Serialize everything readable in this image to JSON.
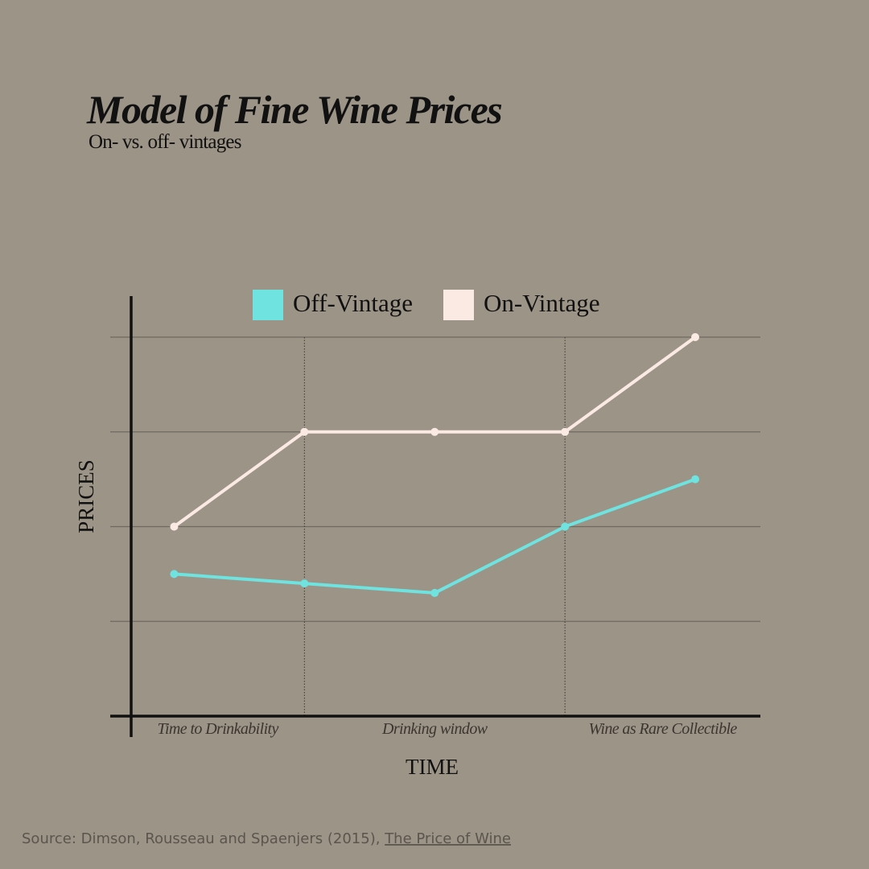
{
  "chart_data": {
    "type": "line",
    "title": "Model of Fine Wine Prices",
    "subtitle": "On- vs. off- vintages",
    "x_label": "TIME",
    "y_label": "PRICES",
    "x": [
      0,
      1,
      2,
      3,
      4
    ],
    "xlim": [
      -0.33,
      4.5
    ],
    "ylim": [
      0,
      4
    ],
    "yticks": [
      1,
      2,
      3,
      4
    ],
    "grid": true,
    "dividers": [
      1,
      3
    ],
    "phase_labels": [
      "Time to Drinkability",
      "Drinking window",
      "Wine as Rare Collectible"
    ],
    "legend": "top",
    "series": [
      {
        "name": "Off-Vintage",
        "color": "#6ee3e0",
        "values": [
          1.5,
          1.4,
          1.3,
          2,
          2.5
        ]
      },
      {
        "name": "On-Vintage",
        "color": "#fbeae4",
        "values": [
          2,
          3,
          3,
          3,
          4
        ]
      }
    ],
    "source_text": "Source:  Dimson, Rousseau and Spaenjers (2015), ",
    "source_link": "The Price of Wine"
  }
}
